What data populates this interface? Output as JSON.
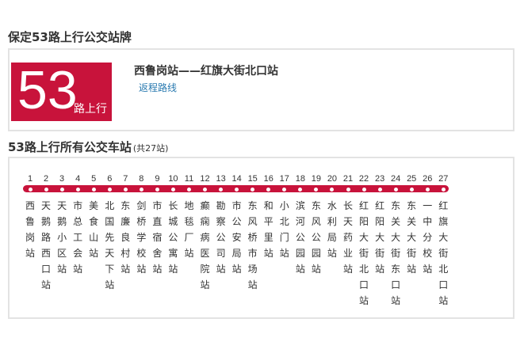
{
  "page_title": "保定53路上行公交站牌",
  "badge": {
    "number": "53",
    "sub": "路上行"
  },
  "route_name": "西鲁岗站——红旗大街北口站",
  "return_link": "返程路线",
  "stops_heading": "53路上行所有公交车站",
  "stops_count": "(共27站)",
  "colors": {
    "route_red": "#c8133b",
    "link_blue": "#2a7ab0",
    "border": "#e3e3e3"
  },
  "stops": [
    {
      "num": "1",
      "name": "西鲁岗站"
    },
    {
      "num": "2",
      "name": "天鹅路西口站"
    },
    {
      "num": "3",
      "name": "天鹅小区站"
    },
    {
      "num": "4",
      "name": "市总工会站"
    },
    {
      "num": "5",
      "name": "美食山站"
    },
    {
      "num": "6",
      "name": "北国先天下站"
    },
    {
      "num": "7",
      "name": "东廉良村站"
    },
    {
      "num": "8",
      "name": "剑桥学校站"
    },
    {
      "num": "9",
      "name": "市直宿舍站"
    },
    {
      "num": "10",
      "name": "长城公寓站"
    },
    {
      "num": "11",
      "name": "地毯厂站"
    },
    {
      "num": "12",
      "name": "癫痫病医院站"
    },
    {
      "num": "13",
      "name": "勘察公司站"
    },
    {
      "num": "14",
      "name": "市公安局站"
    },
    {
      "num": "15",
      "name": "东风桥市场站"
    },
    {
      "num": "16",
      "name": "和平里站"
    },
    {
      "num": "17",
      "name": "小北门站"
    },
    {
      "num": "18",
      "name": "滨河公园站"
    },
    {
      "num": "19",
      "name": "东风公园站"
    },
    {
      "num": "20",
      "name": "水利局站"
    },
    {
      "num": "21",
      "name": "长天药业站"
    },
    {
      "num": "22",
      "name": "红阳大街北口站"
    },
    {
      "num": "23",
      "name": "红阳大街站"
    },
    {
      "num": "24",
      "name": "东关大街东口站"
    },
    {
      "num": "25",
      "name": "东关大街站"
    },
    {
      "num": "26",
      "name": "一中分校站"
    },
    {
      "num": "27",
      "name": "红旗大街北口站"
    }
  ]
}
